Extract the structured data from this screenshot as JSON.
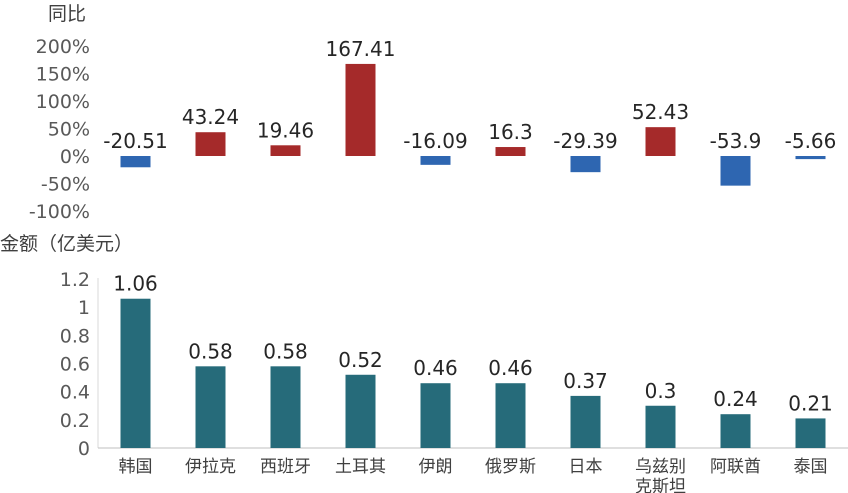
{
  "chart_data": [
    {
      "type": "bar",
      "title": "",
      "ylabel": "同比",
      "categories": [
        "韩国",
        "伊拉克",
        "西班牙",
        "土耳其",
        "伊朗",
        "俄罗斯",
        "日本",
        "乌兹别克斯坦",
        "阿联酋",
        "泰国"
      ],
      "values": [
        -20.51,
        43.24,
        19.46,
        167.41,
        -16.09,
        16.3,
        -29.39,
        52.43,
        -53.9,
        -5.66
      ],
      "data_labels": [
        "-20.51",
        "43.24",
        "19.46",
        "167.41",
        "-16.09",
        "16.3",
        "-29.39",
        "52.43",
        "-53.9",
        "-5.66"
      ],
      "yticks": [
        "200%",
        "150%",
        "100%",
        "50%",
        "0%",
        "-50%",
        "-100%"
      ],
      "ylim": [
        -100,
        200
      ],
      "colors": {
        "positive": "#a52a2a",
        "negative": "#2e66b1"
      },
      "grid": false
    },
    {
      "type": "bar",
      "title": "",
      "ylabel": "金额（亿美元）",
      "categories": [
        "韩国",
        "伊拉克",
        "西班牙",
        "土耳其",
        "伊朗",
        "俄罗斯",
        "日本",
        "乌兹别克斯坦",
        "阿联酋",
        "泰国"
      ],
      "category_lines": [
        [
          "韩国"
        ],
        [
          "伊拉克"
        ],
        [
          "西班牙"
        ],
        [
          "土耳其"
        ],
        [
          "伊朗"
        ],
        [
          "俄罗斯"
        ],
        [
          "日本"
        ],
        [
          "乌兹别",
          "克斯坦"
        ],
        [
          "阿联酋"
        ],
        [
          "泰国"
        ]
      ],
      "values": [
        1.06,
        0.58,
        0.58,
        0.52,
        0.46,
        0.46,
        0.37,
        0.3,
        0.24,
        0.21
      ],
      "data_labels": [
        "1.06",
        "0.58",
        "0.58",
        "0.52",
        "0.46",
        "0.46",
        "0.37",
        "0.3",
        "0.24",
        "0.21"
      ],
      "yticks": [
        "1.2",
        "1",
        "0.8",
        "0.6",
        "0.4",
        "0.2",
        "0"
      ],
      "ylim": [
        0,
        1.2
      ],
      "colors": {
        "bar": "#266b7a"
      },
      "grid": false
    }
  ]
}
